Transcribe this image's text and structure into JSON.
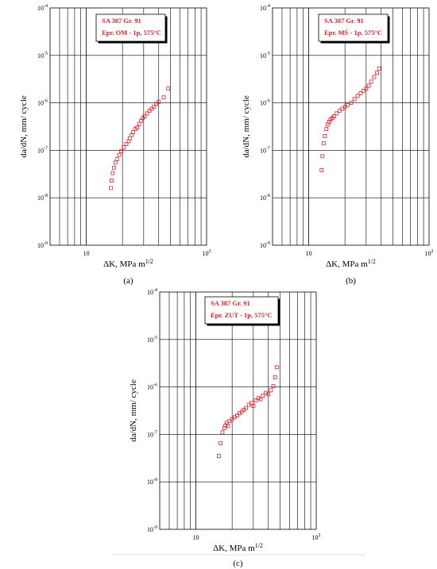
{
  "chart_data": [
    {
      "type": "scatter",
      "panel_label": "(a)",
      "legend": {
        "line1": "SA 387 Gr. 91",
        "line2": "Epr. OM - 1p,  575°C"
      },
      "xlabel": "ΔK, MPa m1/2",
      "ylabel": "da/dN, mm/ cycle",
      "xscale": "log",
      "yscale": "log",
      "xlim": [
        5,
        100
      ],
      "ylim": [
        1e-09,
        0.0001
      ],
      "xticks": [
        {
          "label": "10"
        },
        {
          "label": "10",
          "sup": "2"
        }
      ],
      "yticks": [
        "10-9",
        "10-8",
        "10-7",
        "10-6",
        "10-5",
        "10-4"
      ],
      "marker_color": "#e0202a",
      "x": [
        16.0,
        16.2,
        16.6,
        17.0,
        17.5,
        18.0,
        18.8,
        19.5,
        20.5,
        21.5,
        22.5,
        23.0,
        23.8,
        24.5,
        25.5,
        26.5,
        27.5,
        28.5,
        29.5,
        30.5,
        32.0,
        33.5,
        35.0,
        36.5,
        38.0,
        40.0,
        44.0,
        48.0
      ],
      "y": [
        1.6e-08,
        2.3e-08,
        3.3e-08,
        4.3e-08,
        5.5e-08,
        6.5e-08,
        8e-08,
        9.5e-08,
        1.15e-07,
        1.35e-07,
        1.55e-07,
        1.8e-07,
        2.1e-07,
        2.4e-07,
        2.8e-07,
        3e-07,
        3.6e-07,
        4.2e-07,
        4.8e-07,
        5.2e-07,
        6e-07,
        6.8e-07,
        7.5e-07,
        8.3e-07,
        9.5e-07,
        1.05e-06,
        1.3e-06,
        2e-06
      ]
    },
    {
      "type": "scatter",
      "panel_label": "(b)",
      "legend": {
        "line1": "SA 387 Gr. 91",
        "line2": "Epr. MŚ - 1p,  575°C"
      },
      "xlabel": "ΔK, MPa m1/2",
      "ylabel": "da/dN, mm/ cycle",
      "xscale": "log",
      "yscale": "log",
      "xlim": [
        5,
        100
      ],
      "ylim": [
        1e-09,
        0.0001
      ],
      "xticks": [
        {
          "label": "10"
        },
        {
          "label": "10",
          "sup": "2"
        }
      ],
      "yticks": [
        "10-9",
        "10-8",
        "10-7",
        "10-6",
        "10-5",
        "10-4"
      ],
      "marker_color": "#e0202a",
      "x": [
        12.8,
        13.0,
        13.3,
        13.6,
        14.0,
        14.4,
        14.8,
        15.2,
        15.7,
        16.2,
        17.0,
        18.0,
        19.0,
        20.0,
        21.0,
        22.5,
        24.0,
        25.5,
        27.0,
        28.5,
        30.0,
        31.5,
        33.0,
        35.0,
        37.0,
        38.5
      ],
      "y": [
        3.8e-08,
        7.5e-08,
        1.4e-07,
        2e-07,
        2.8e-07,
        3.5e-07,
        4e-07,
        4.5e-07,
        4.8e-07,
        5.2e-07,
        6e-07,
        6.8e-07,
        7.5e-07,
        8.2e-07,
        9e-07,
        1e-06,
        1.2e-06,
        1.4e-06,
        1.6e-06,
        1.8e-06,
        2e-06,
        2.3e-06,
        2.8e-06,
        3.5e-06,
        4.3e-06,
        5.3e-06
      ]
    },
    {
      "type": "scatter",
      "panel_label": "(c)",
      "legend": {
        "line1": "SA 387 Gr. 91",
        "line2": "Epr. ZUT - 1p,  575°C"
      },
      "xlabel": "ΔK, MPa m1/2",
      "ylabel": "da/dN, mm/ cycle",
      "xscale": "log",
      "yscale": "log",
      "xlim": [
        5,
        100
      ],
      "ylim": [
        1e-09,
        0.0001
      ],
      "xticks": [
        {
          "label": "10"
        },
        {
          "label": "10",
          "sup": "2"
        }
      ],
      "yticks": [
        "10-9",
        "10-8",
        "10-7",
        "10-6",
        "10-5",
        "10-4"
      ],
      "marker_color": "#e0202a",
      "x": [
        15.5,
        16.0,
        16.6,
        17.2,
        17.6,
        18.0,
        18.5,
        19.0,
        20.0,
        21.0,
        22.0,
        23.0,
        24.0,
        25.0,
        26.0,
        27.5,
        29.0,
        30.0,
        31.5,
        33.0,
        34.5,
        36.0,
        38.0,
        40.0,
        42.0,
        44.0,
        45.5,
        47.0
      ],
      "y": [
        3.5e-08,
        6.5e-08,
        1.1e-07,
        1.35e-07,
        1.55e-07,
        1.75e-07,
        1.5e-07,
        1.9e-07,
        2.1e-07,
        2.3e-07,
        2.5e-07,
        2.8e-07,
        3e-07,
        3.3e-07,
        3.6e-07,
        4.2e-07,
        4.6e-07,
        4e-07,
        5.2e-07,
        5.8e-07,
        5.5e-07,
        6.5e-07,
        7.5e-07,
        7e-07,
        8.5e-07,
        1.05e-06,
        1.6e-06,
        2.6e-06
      ]
    }
  ]
}
